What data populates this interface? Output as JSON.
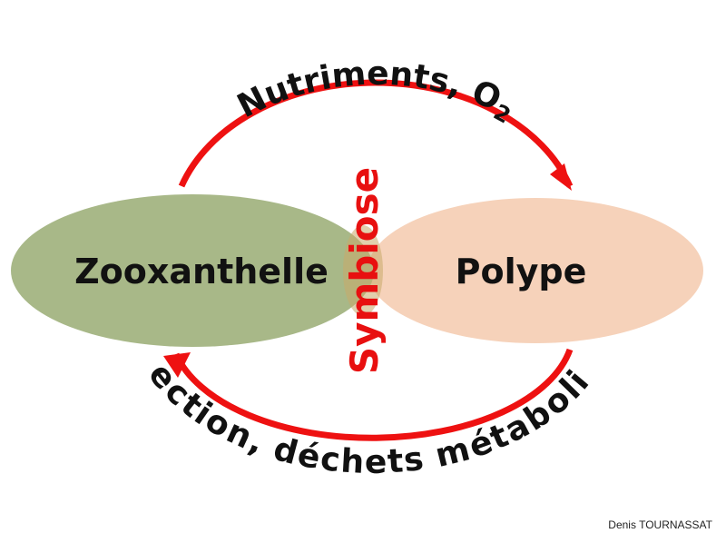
{
  "nodes": {
    "left": {
      "label": "Zooxanthelle",
      "color": "#a8b888"
    },
    "right": {
      "label": "Polype",
      "color": "#f6d2ba"
    }
  },
  "center_label": {
    "text": "Symbiose",
    "color": "#e81010"
  },
  "arrows": {
    "color": "#ee1111",
    "top": {
      "label": "Nutriments, O",
      "subscript": "2"
    },
    "bottom": {
      "label": "Protection, déchets métaboliques"
    }
  },
  "credit": "Denis TOURNASSAT"
}
